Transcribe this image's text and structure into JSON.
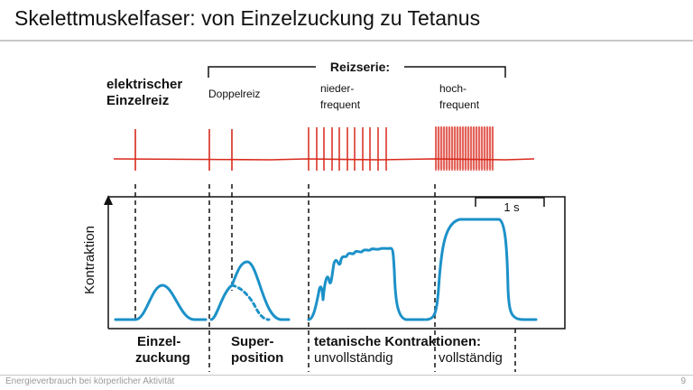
{
  "slide": {
    "title": "Skelettmuskelfaser:  von Einzelzuckung zu Tetanus",
    "footer": "Energieverbrauch bei körperlicher Aktivität",
    "page_number": "9"
  },
  "stimulus": {
    "single_line1": "elektrischer",
    "single_line2": "Einzelreiz",
    "series_label": "Reizserie:",
    "double": "Doppelreiz",
    "low_line1": "nieder-",
    "low_line2": "frequent",
    "high_line1": "hoch-",
    "high_line2": "frequent"
  },
  "plot": {
    "y_axis": "Kontraktion",
    "scale_bar": "1 s"
  },
  "labels": {
    "twitch_line1": "Einzel-",
    "twitch_line2": "zuckung",
    "super_line1": "Super-",
    "super_line2": "position",
    "tetanic": "tetanische Kontraktionen:",
    "incomplete": "unvollständig",
    "complete": "vollständig"
  },
  "colors": {
    "stimulus_trace": "#d9291c",
    "contraction_trace": "#1c91c8"
  }
}
